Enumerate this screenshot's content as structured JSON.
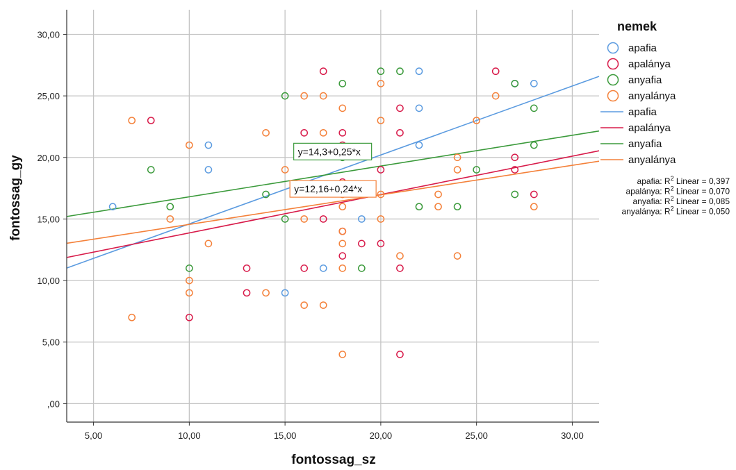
{
  "chart_data": {
    "type": "scatter",
    "xlabel": "fontossag_sz",
    "ylabel": "fontossag_gy",
    "xlim": [
      3.6,
      31.4
    ],
    "ylim": [
      -1.5,
      32.0
    ],
    "x_ticks": [
      5,
      10,
      15,
      20,
      25,
      30
    ],
    "x_tick_labels": [
      "5,00",
      "10,00",
      "15,00",
      "20,00",
      "25,00",
      "30,00"
    ],
    "y_ticks": [
      0,
      5,
      10,
      15,
      20,
      25,
      30
    ],
    "y_tick_labels": [
      ",00",
      "5,00",
      "10,00",
      "15,00",
      "20,00",
      "25,00",
      "30,00"
    ],
    "grid": true,
    "legend": {
      "title": "nemek",
      "placement": "right",
      "marker_entries": [
        "apafia",
        "apalánya",
        "anyafia",
        "anyalánya"
      ],
      "line_entries": [
        "apafia",
        "apalánya",
        "anyafia",
        "anyalánya"
      ],
      "r2_lines": [
        {
          "group": "apafia",
          "prefix": "apafia: R",
          "sup": "2",
          "suffix": " Linear = 0,397"
        },
        {
          "group": "apalánya",
          "prefix": "apalánya: R",
          "sup": "2",
          "suffix": " Linear = 0,070"
        },
        {
          "group": "anyafia",
          "prefix": "anyafia: R",
          "sup": "2",
          "suffix": " Linear = 0,085"
        },
        {
          "group": "anyalánya",
          "prefix": "anyalánya: R",
          "sup": "2",
          "suffix": " Linear = 0,050"
        }
      ]
    },
    "series": [
      {
        "name": "apafia",
        "color": "#5b9be0",
        "points": [
          [
            6,
            16
          ],
          [
            11,
            21
          ],
          [
            11,
            19
          ],
          [
            15,
            9
          ],
          [
            17,
            11
          ],
          [
            19,
            15
          ],
          [
            22,
            27
          ],
          [
            22,
            24
          ],
          [
            22,
            21
          ],
          [
            28,
            26
          ],
          [
            27,
            26
          ]
        ],
        "fit": {
          "intercept": 9.0,
          "slope": 0.56
        }
      },
      {
        "name": "apalánya",
        "color": "#d81b4a",
        "points": [
          [
            8,
            23
          ],
          [
            10,
            7
          ],
          [
            13,
            11
          ],
          [
            13,
            9
          ],
          [
            16,
            22
          ],
          [
            16,
            11
          ],
          [
            17,
            27
          ],
          [
            17,
            15
          ],
          [
            18,
            22
          ],
          [
            18,
            21
          ],
          [
            18,
            18
          ],
          [
            18,
            14
          ],
          [
            18,
            12
          ],
          [
            19,
            13
          ],
          [
            20,
            19
          ],
          [
            20,
            13
          ],
          [
            21,
            24
          ],
          [
            21,
            22
          ],
          [
            21,
            11
          ],
          [
            21,
            4
          ],
          [
            26,
            27
          ],
          [
            27,
            20
          ],
          [
            27,
            19
          ],
          [
            28,
            17
          ]
        ],
        "fit": {
          "intercept": 10.75,
          "slope": 0.3118
        }
      },
      {
        "name": "anyafia",
        "color": "#3b9a3b",
        "points": [
          [
            8,
            19
          ],
          [
            9,
            16
          ],
          [
            10,
            11
          ],
          [
            14,
            17
          ],
          [
            15,
            25
          ],
          [
            15,
            15
          ],
          [
            18,
            26
          ],
          [
            18,
            20
          ],
          [
            19,
            11
          ],
          [
            20,
            27
          ],
          [
            21,
            27
          ],
          [
            22,
            16
          ],
          [
            24,
            16
          ],
          [
            25,
            19
          ],
          [
            27,
            26
          ],
          [
            27,
            17
          ],
          [
            28,
            24
          ],
          [
            28,
            21
          ]
        ],
        "fit": {
          "intercept": 14.3,
          "slope": 0.25
        },
        "equation": "y=14,3+0,25*x"
      },
      {
        "name": "anyalánya",
        "color": "#f4813a",
        "points": [
          [
            7,
            23
          ],
          [
            7,
            7
          ],
          [
            9,
            15
          ],
          [
            10,
            21
          ],
          [
            10,
            10
          ],
          [
            10,
            9
          ],
          [
            11,
            13
          ],
          [
            14,
            22
          ],
          [
            14,
            9
          ],
          [
            15,
            19
          ],
          [
            16,
            25
          ],
          [
            16,
            15
          ],
          [
            16,
            8
          ],
          [
            17,
            25
          ],
          [
            17,
            22
          ],
          [
            17,
            8
          ],
          [
            18,
            24
          ],
          [
            18,
            17
          ],
          [
            18,
            16
          ],
          [
            18,
            14
          ],
          [
            18,
            13
          ],
          [
            18,
            11
          ],
          [
            18,
            4
          ],
          [
            20,
            26
          ],
          [
            20,
            23
          ],
          [
            20,
            17
          ],
          [
            20,
            15
          ],
          [
            21,
            12
          ],
          [
            23,
            17
          ],
          [
            23,
            16
          ],
          [
            24,
            20
          ],
          [
            24,
            19
          ],
          [
            24,
            12
          ],
          [
            25,
            23
          ],
          [
            26,
            25
          ],
          [
            28,
            16
          ]
        ],
        "fit": {
          "intercept": 12.16,
          "slope": 0.24
        },
        "equation": "y=12,16+0,24*x"
      }
    ]
  }
}
